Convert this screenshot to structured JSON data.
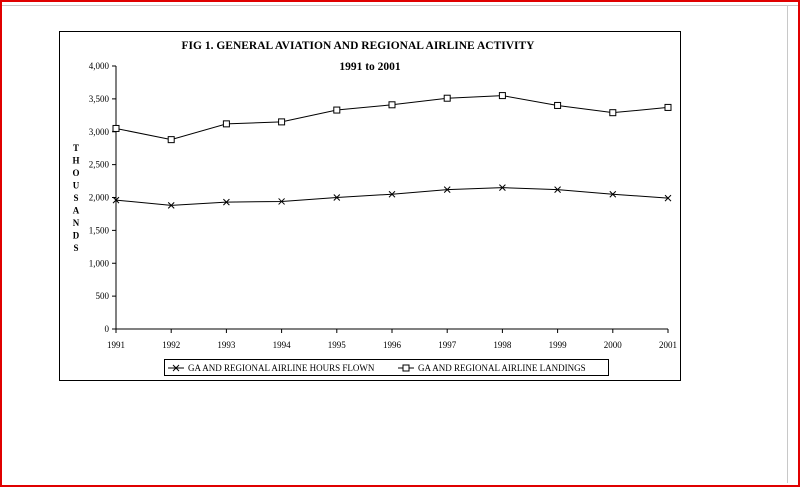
{
  "chart_data": {
    "type": "line",
    "title": "FIG 1.  GENERAL AVIATION AND REGIONAL AIRLINE ACTIVITY",
    "subtitle": "1991 to 2001",
    "ylabel": "THOUSANDS",
    "xlabel": "",
    "ylim": [
      0,
      4000
    ],
    "yticks": [
      0,
      500,
      1000,
      1500,
      2000,
      2500,
      3000,
      3500,
      4000
    ],
    "ytick_labels": [
      "0",
      "500",
      "1,000",
      "1,500",
      "2,000",
      "2,500",
      "3,000",
      "3,500",
      "4,000"
    ],
    "x": [
      "1991",
      "1992",
      "1993",
      "1994",
      "1995",
      "1996",
      "1997",
      "1998",
      "1999",
      "2000",
      "2001"
    ],
    "grid": false,
    "legend_position": "bottom",
    "series": [
      {
        "name": "GA AND REGIONAL AIRLINE HOURS FLOWN",
        "marker": "x",
        "values": [
          1960,
          1880,
          1930,
          1940,
          2000,
          2050,
          2120,
          2150,
          2120,
          2050,
          1990
        ]
      },
      {
        "name": "GA AND REGIONAL AIRLINE LANDINGS",
        "marker": "square",
        "values": [
          3050,
          2880,
          3120,
          3150,
          3330,
          3410,
          3510,
          3550,
          3400,
          3290,
          3370
        ]
      }
    ]
  }
}
